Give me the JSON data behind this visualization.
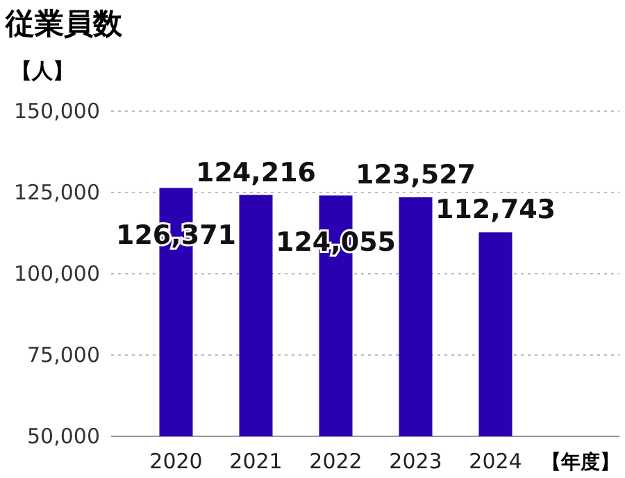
{
  "chart_data": {
    "type": "bar",
    "title": "従業員数",
    "ylabel": "【人】",
    "xlabel": "【年度】",
    "categories": [
      "2020",
      "2021",
      "2022",
      "2023",
      "2024"
    ],
    "values": [
      126371,
      124216,
      124055,
      123527,
      112743
    ],
    "color": "#2a00b0",
    "ylim": [
      50000,
      150000
    ],
    "yticks": [
      {
        "value": 50000,
        "label": "50,000"
      },
      {
        "value": 75000,
        "label": "75,000"
      },
      {
        "value": 100000,
        "label": "100,000"
      },
      {
        "value": 125000,
        "label": "125,000"
      },
      {
        "value": 150000,
        "label": "150,000"
      }
    ],
    "grid": "y",
    "value_labels": [
      "126,371",
      "124,216",
      "124,055",
      "123,527",
      "112,743"
    ]
  }
}
